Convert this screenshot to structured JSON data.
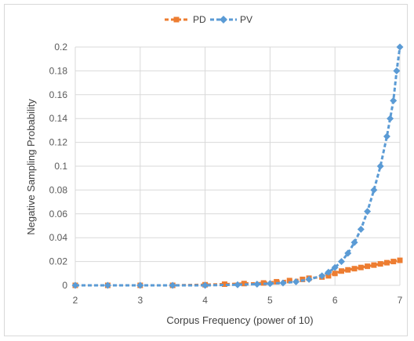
{
  "chart_data": {
    "type": "scatter",
    "title": "",
    "xlabel": "Corpus Frequency (power of 10)",
    "ylabel": "Negative Sampling Probability",
    "xlim": [
      2,
      7
    ],
    "ylim": [
      0,
      0.2
    ],
    "x_ticks": [
      "2",
      "3",
      "4",
      "5",
      "6",
      "7"
    ],
    "y_ticks": [
      "0",
      "0.02",
      "0.04",
      "0.06",
      "0.08",
      "0.1",
      "0.12",
      "0.14",
      "0.16",
      "0.18",
      "0.2"
    ],
    "grid": true,
    "legend_position": "top-center",
    "series": [
      {
        "name": "PD",
        "color": "#ed7d31",
        "marker": "square",
        "x": [
          2.0,
          2.5,
          3.0,
          3.5,
          4.0,
          4.3,
          4.6,
          4.9,
          5.1,
          5.3,
          5.5,
          5.6,
          5.8,
          5.9,
          6.0,
          6.1,
          6.2,
          6.3,
          6.4,
          6.5,
          6.6,
          6.7,
          6.8,
          6.9,
          7.0
        ],
        "y": [
          0.0,
          0.0,
          0.0,
          0.0,
          0.0005,
          0.001,
          0.0015,
          0.002,
          0.003,
          0.004,
          0.005,
          0.006,
          0.007,
          0.008,
          0.01,
          0.012,
          0.013,
          0.014,
          0.015,
          0.016,
          0.017,
          0.018,
          0.019,
          0.02,
          0.021
        ]
      },
      {
        "name": "PV",
        "color": "#5b9bd5",
        "marker": "diamond",
        "x": [
          2.0,
          2.5,
          3.0,
          3.5,
          4.0,
          4.5,
          4.8,
          5.0,
          5.2,
          5.4,
          5.6,
          5.8,
          5.9,
          6.0,
          6.1,
          6.2,
          6.3,
          6.4,
          6.5,
          6.6,
          6.7,
          6.8,
          6.85,
          6.9,
          6.95,
          7.0
        ],
        "y": [
          0.0,
          0.0,
          0.0,
          0.0,
          0.0,
          0.0005,
          0.001,
          0.0015,
          0.002,
          0.003,
          0.005,
          0.008,
          0.011,
          0.015,
          0.02,
          0.027,
          0.036,
          0.047,
          0.062,
          0.08,
          0.1,
          0.125,
          0.14,
          0.155,
          0.18,
          0.2
        ]
      }
    ]
  }
}
